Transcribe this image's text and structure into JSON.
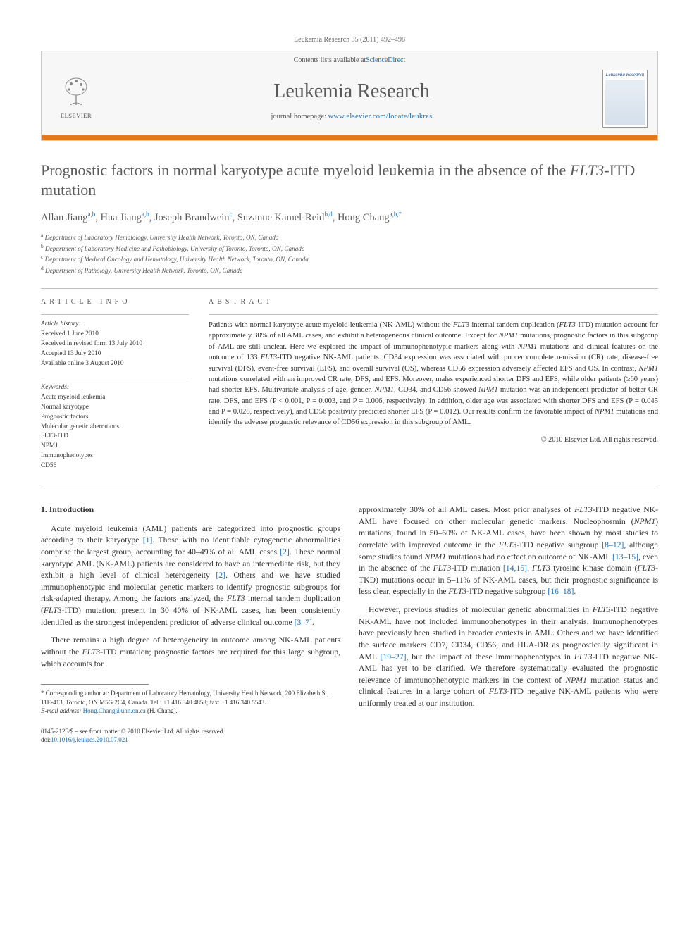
{
  "citation": "Leukemia Research 35 (2011) 492–498",
  "header": {
    "contents_line_prefix": "Contents lists available at ",
    "contents_link": "ScienceDirect",
    "journal_name": "Leukemia Research",
    "homepage_prefix": "journal homepage: ",
    "homepage_url": "www.elsevier.com/locate/leukres",
    "publisher": "ELSEVIER",
    "cover_title": "Leukemia Research"
  },
  "article": {
    "title_pre": "Prognostic factors in normal karyotype acute myeloid leukemia in the absence of the ",
    "title_ital": "FLT3",
    "title_post": "-ITD mutation",
    "authors_html": "Allan Jiang<sup>a,b</sup>, Hua Jiang<sup>a,b</sup>, Joseph Brandwein<sup>c</sup>, Suzanne Kamel-Reid<sup>b,d</sup>, Hong Chang<sup>a,b,*</sup>",
    "affiliations": [
      {
        "key": "a",
        "text": "Department of Laboratory Hematology, University Health Network, Toronto, ON, Canada"
      },
      {
        "key": "b",
        "text": "Department of Laboratory Medicine and Pathobiology, University of Toronto, Toronto, ON, Canada"
      },
      {
        "key": "c",
        "text": "Department of Medical Oncology and Hematology, University Health Network, Toronto, ON, Canada"
      },
      {
        "key": "d",
        "text": "Department of Pathology, University Health Network, Toronto, ON, Canada"
      }
    ]
  },
  "info": {
    "heading": "ARTICLE INFO",
    "history_label": "Article history:",
    "history": [
      "Received 1 June 2010",
      "Received in revised form 13 July 2010",
      "Accepted 13 July 2010",
      "Available online 3 August 2010"
    ],
    "keywords_label": "Keywords:",
    "keywords": [
      "Acute myeloid leukemia",
      "Normal karyotype",
      "Prognostic factors",
      "Molecular genetic aberrations",
      "FLT3-ITD",
      "NPM1",
      "Immunophenotypes",
      "CD56"
    ]
  },
  "abstract": {
    "heading": "ABSTRACT",
    "text": "Patients with normal karyotype acute myeloid leukemia (NK-AML) without the FLT3 internal tandem duplication (FLT3-ITD) mutation account for approximately 30% of all AML cases, and exhibit a heterogeneous clinical outcome. Except for NPM1 mutations, prognostic factors in this subgroup of AML are still unclear. Here we explored the impact of immunophenotypic markers along with NPM1 mutations and clinical features on the outcome of 133 FLT3-ITD negative NK-AML patients. CD34 expression was associated with poorer complete remission (CR) rate, disease-free survival (DFS), event-free survival (EFS), and overall survival (OS), whereas CD56 expression adversely affected EFS and OS. In contrast, NPM1 mutations correlated with an improved CR rate, DFS, and EFS. Moreover, males experienced shorter DFS and EFS, while older patients (≥60 years) had shorter EFS. Multivariate analysis of age, gender, NPM1, CD34, and CD56 showed NPM1 mutation was an independent predictor of better CR rate, DFS, and EFS (P < 0.001, P = 0.003, and P = 0.006, respectively). In addition, older age was associated with shorter DFS and EFS (P = 0.045 and P = 0.028, respectively), and CD56 positivity predicted shorter EFS (P = 0.012). Our results confirm the favorable impact of NPM1 mutations and identify the adverse prognostic relevance of CD56 expression in this subgroup of AML.",
    "copyright": "© 2010 Elsevier Ltd. All rights reserved."
  },
  "body": {
    "section1_heading": "1. Introduction",
    "col1_p1": "Acute myeloid leukemia (AML) patients are categorized into prognostic groups according to their karyotype [1]. Those with no identifiable cytogenetic abnormalities comprise the largest group, accounting for 40–49% of all AML cases [2]. These normal karyotype AML (NK-AML) patients are considered to have an intermediate risk, but they exhibit a high level of clinical heterogeneity [2]. Others and we have studied immunophenotypic and molecular genetic markers to identify prognostic subgroups for risk-adapted therapy. Among the factors analyzed, the FLT3 internal tandem duplication (FLT3-ITD) mutation, present in 30–40% of NK-AML cases, has been consistently identified as the strongest independent predictor of adverse clinical outcome [3–7].",
    "col1_p2": "There remains a high degree of heterogeneity in outcome among NK-AML patients without the FLT3-ITD mutation; prognostic factors are required for this large subgroup, which accounts for",
    "col2_p1": "approximately 30% of all AML cases. Most prior analyses of FLT3-ITD negative NK-AML have focused on other molecular genetic markers. Nucleophosmin (NPM1) mutations, found in 50–60% of NK-AML cases, have been shown by most studies to correlate with improved outcome in the FLT3-ITD negative subgroup [8–12], although some studies found NPM1 mutations had no effect on outcome of NK-AML [13–15], even in the absence of the FLT3-ITD mutation [14,15]. FLT3 tyrosine kinase domain (FLT3-TKD) mutations occur in 5–11% of NK-AML cases, but their prognostic significance is less clear, especially in the FLT3-ITD negative subgroup [16–18].",
    "col2_p2": "However, previous studies of molecular genetic abnormalities in FLT3-ITD negative NK-AML have not included immunophenotypes in their analysis. Immunophenotypes have previously been studied in broader contexts in AML. Others and we have identified the surface markers CD7, CD34, CD56, and HLA-DR as prognostically significant in AML [19–27], but the impact of these immunophenotypes in FLT3-ITD negative NK-AML has yet to be clarified. We therefore systematically evaluated the prognostic relevance of immunophenotypic markers in the context of NPM1 mutation status and clinical features in a large cohort of FLT3-ITD negative NK-AML patients who were uniformly treated at our institution."
  },
  "footnotes": {
    "corresponding": "* Corresponding author at: Department of Laboratory Hematology, University Health Network, 200 Elizabeth St, 11E-413, Toronto, ON M5G 2C4, Canada. Tel.: +1 416 340 4858; fax: +1 416 340 5543.",
    "email_label": "E-mail address: ",
    "email": "Hong.Chang@uhn.on.ca",
    "email_suffix": " (H. Chang)."
  },
  "footer": {
    "line1": "0145-2126/$ – see front matter © 2010 Elsevier Ltd. All rights reserved.",
    "doi_label": "doi:",
    "doi": "10.1016/j.leukres.2010.07.021"
  },
  "colors": {
    "accent_orange": "#e77817",
    "link_blue": "#1a6fb5",
    "text_gray": "#5a5a5a"
  }
}
